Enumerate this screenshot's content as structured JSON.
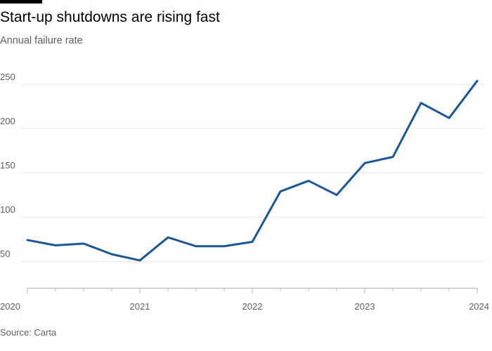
{
  "header": {
    "title": "Start-up shutdowns are rising fast",
    "subtitle": "Annual failure rate"
  },
  "footer": {
    "source": "Source: Carta"
  },
  "colors": {
    "line": "#1b5695",
    "gridline": "#ebe8e5",
    "axis": "#b8b3ae",
    "text": "#66605c",
    "title": "#000000",
    "accent_bar": "#000000"
  },
  "chart_data": {
    "type": "line",
    "title": "Start-up shutdowns are rising fast",
    "subtitle": "Annual failure rate",
    "xlabel": "",
    "ylabel": "",
    "x_ticks": [
      "2020",
      "2021",
      "2022",
      "2023",
      "2024"
    ],
    "y_ticks": [
      50,
      100,
      150,
      200,
      250
    ],
    "ylim": [
      20,
      270
    ],
    "xlim": [
      "2020-Q1",
      "2024-Q1"
    ],
    "grid": true,
    "legend": "none",
    "series": [
      {
        "x": [
          "2020-Q1",
          "2020-Q2",
          "2020-Q3",
          "2020-Q4",
          "2021-Q1",
          "2021-Q2",
          "2021-Q3",
          "2021-Q4",
          "2022-Q1",
          "2022-Q2",
          "2022-Q3",
          "2022-Q4",
          "2023-Q1",
          "2023-Q2",
          "2023-Q3",
          "2023-Q4",
          "2024-Q1"
        ],
        "values": [
          74,
          68,
          70,
          58,
          51,
          77,
          67,
          67,
          72,
          129,
          141,
          125,
          161,
          168,
          229,
          212,
          254
        ]
      }
    ]
  }
}
